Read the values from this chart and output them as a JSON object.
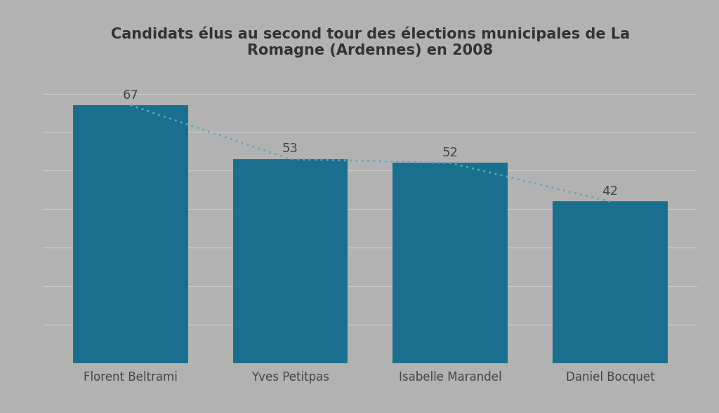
{
  "title": "Candidats élus au second tour des élections municipales de La\nRomagne (Ardennes) en 2008",
  "categories": [
    "Florent Beltrami",
    "Yves Petitpas",
    "Isabelle Marandel",
    "Daniel Bocquet"
  ],
  "values": [
    67,
    53,
    52,
    42
  ],
  "bar_color": "#1a6e8e",
  "dotted_line_color": "#5aabbd",
  "background_color": "#b2b2b2",
  "plot_background_color": "#b2b2b2",
  "title_fontsize": 15,
  "tick_fontsize": 12,
  "value_fontsize": 13,
  "ylim": [
    0,
    75
  ],
  "bar_width": 0.72,
  "grid_color": "#c9c9c9",
  "grid_linewidth": 1.0
}
